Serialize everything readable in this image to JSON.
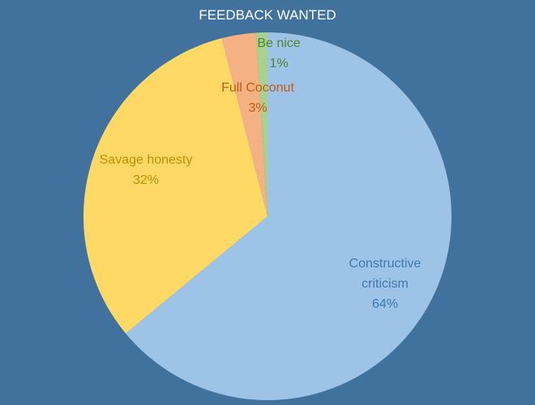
{
  "colors": {
    "background": "#41729e"
  },
  "chart_data": {
    "type": "pie",
    "title": "FEEDBACK WANTED",
    "start_angle_deg": 0,
    "direction": "clockwise",
    "slices": [
      {
        "name": "Constructive criticism",
        "label_lines": [
          "Constructive",
          "criticism"
        ],
        "value": 64,
        "percent_label": "64%",
        "color": "#9dc3e6",
        "label_color": "#3d78b4"
      },
      {
        "name": "Savage honesty",
        "label_lines": [
          "Savage honesty"
        ],
        "value": 32,
        "percent_label": "32%",
        "color": "#ffd966",
        "label_color": "#bf9000"
      },
      {
        "name": "Full Coconut",
        "label_lines": [
          "Full Coconut"
        ],
        "value": 3,
        "percent_label": "3%",
        "color": "#f4b183",
        "label_color": "#c55a11"
      },
      {
        "name": "Be nice",
        "label_lines": [
          "Be nice"
        ],
        "value": 1,
        "percent_label": "1%",
        "color": "#a9d18e",
        "label_color": "#548235"
      }
    ]
  }
}
